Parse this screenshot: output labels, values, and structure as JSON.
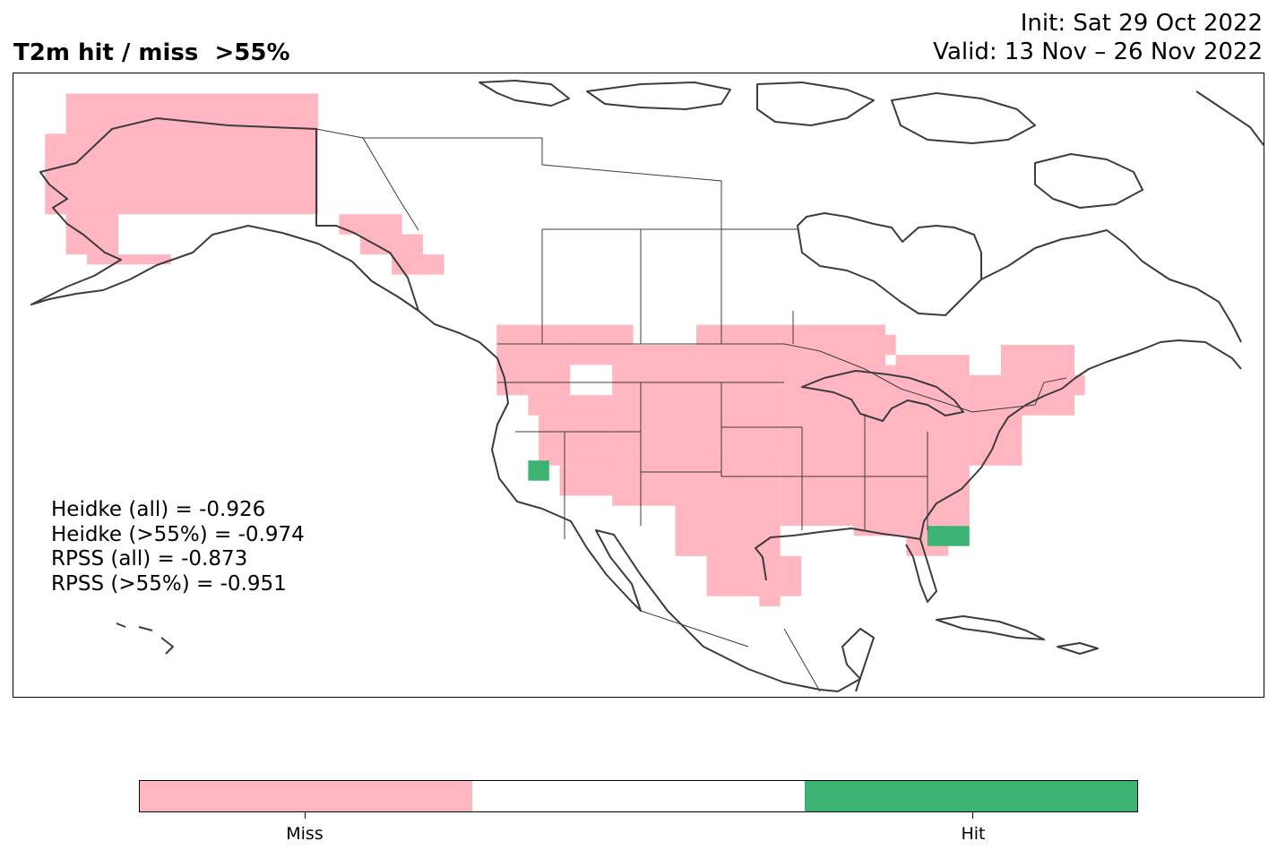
{
  "header": {
    "title": "T2m hit / miss  >55%",
    "init": "Init: Sat 29 Oct 2022",
    "valid": "Valid: 13 Nov – 26 Nov 2022"
  },
  "stats": [
    "Heidke (all) = -0.926",
    "Heidke (>55%) = -0.974",
    "RPSS (all) = -0.873",
    "RPSS (>55%) = -0.951"
  ],
  "legend": {
    "miss_label": "Miss",
    "hit_label": "Hit"
  },
  "colors": {
    "miss": "#ffb6c1",
    "neutral": "#ffffff",
    "hit": "#3cb371",
    "coast": "#3c3c3c",
    "border": "#3c3c3c"
  },
  "map": {
    "projection": "plate-carree",
    "lon_range": [
      -170,
      -51
    ],
    "lat_range": [
      12,
      74
    ],
    "miss_cells": [
      [
        -165,
        -141,
        68,
        72
      ],
      [
        -167,
        -141,
        60,
        68
      ],
      [
        -165,
        -160,
        56,
        60
      ],
      [
        -163,
        -155,
        55,
        56
      ],
      [
        -139,
        -133,
        58,
        60
      ],
      [
        -137,
        -131,
        56,
        58
      ],
      [
        -134,
        -129,
        54,
        56
      ],
      [
        -124,
        -117,
        42,
        49
      ],
      [
        -117,
        -111,
        45,
        49
      ],
      [
        -121,
        -113,
        40,
        42
      ],
      [
        -120,
        -113,
        35,
        40
      ],
      [
        -118,
        -113,
        32,
        35
      ],
      [
        -113,
        -105,
        31,
        47
      ],
      [
        -105,
        -97,
        36,
        49
      ],
      [
        -107,
        -97,
        26,
        36
      ],
      [
        -104,
        -95,
        22,
        26
      ],
      [
        -99,
        -97,
        21,
        22
      ],
      [
        -97,
        -87,
        29,
        49
      ],
      [
        -91,
        -86,
        46,
        48
      ],
      [
        -87,
        -79,
        29,
        45
      ],
      [
        -86,
        -79,
        45,
        46
      ],
      [
        -79,
        -74,
        35,
        44
      ],
      [
        -76,
        -69,
        40,
        47
      ],
      [
        -71,
        -68,
        42,
        44
      ],
      [
        -90,
        -85,
        28,
        30
      ],
      [
        -85,
        -81,
        26,
        30
      ]
    ],
    "hit_cells": [
      [
        -121,
        -119,
        33.5,
        35.5
      ],
      [
        -83,
        -79,
        27,
        29
      ]
    ]
  }
}
